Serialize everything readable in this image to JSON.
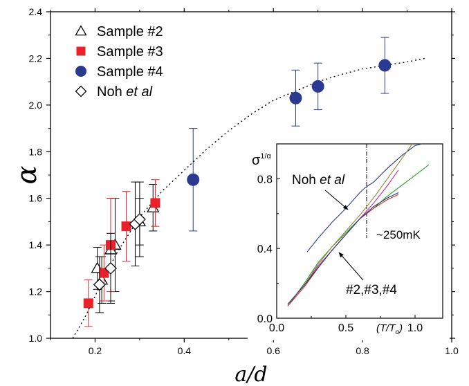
{
  "chart_data": [
    {
      "type": "scatter",
      "xlabel": "a/d",
      "ylabel": "α",
      "xlim": [
        0.1,
        1.0
      ],
      "ylim": [
        1.0,
        2.4
      ],
      "xticks": [
        "0.2",
        "0.4",
        "0.6",
        "0.8",
        "1.0"
      ],
      "yticks": [
        "1.0",
        "1.2",
        "1.4",
        "1.6",
        "1.8",
        "2.0",
        "2.2",
        "2.4"
      ],
      "legend_position": "top-left",
      "legend": [
        {
          "label": "Sample #2",
          "marker": "triangle-open"
        },
        {
          "label": "Sample #3",
          "marker": "square-filled"
        },
        {
          "label": "Sample #4",
          "marker": "circle-filled"
        },
        {
          "label_main": "Noh ",
          "label_italic": "et al",
          "marker": "diamond-open"
        }
      ],
      "series": [
        {
          "name": "Sample #2",
          "marker": "triangle-open",
          "color": "#000000",
          "points": [
            {
              "x": 0.205,
              "y": 1.3,
              "err": 0.09
            },
            {
              "x": 0.215,
              "y": 1.25,
              "err": 0.1
            },
            {
              "x": 0.235,
              "y": 1.38,
              "err": 0.22
            },
            {
              "x": 0.245,
              "y": 1.4,
              "err": 0.2
            },
            {
              "x": 0.3,
              "y": 1.5,
              "err": 0.1
            },
            {
              "x": 0.33,
              "y": 1.56,
              "err": 0.1
            }
          ]
        },
        {
          "name": "Sample #3",
          "marker": "square-filled",
          "color": "#e8212b",
          "points": [
            {
              "x": 0.185,
              "y": 1.15,
              "err": 0.1
            },
            {
              "x": 0.22,
              "y": 1.28,
              "err": 0.12
            },
            {
              "x": 0.235,
              "y": 1.4,
              "err": 0.2
            },
            {
              "x": 0.27,
              "y": 1.48,
              "err": 0.15
            },
            {
              "x": 0.335,
              "y": 1.58,
              "err": 0.1
            }
          ]
        },
        {
          "name": "Sample #4",
          "marker": "circle-filled",
          "color": "#2b3990",
          "points": [
            {
              "x": 0.42,
              "y": 1.68,
              "err": 0.22
            },
            {
              "x": 0.65,
              "y": 2.03,
              "err": 0.12
            },
            {
              "x": 0.7,
              "y": 2.08,
              "err": 0.1
            },
            {
              "x": 0.85,
              "y": 2.17,
              "err": 0.12
            }
          ]
        },
        {
          "name": "Noh et al",
          "marker": "diamond-open",
          "color": "#000000",
          "points": [
            {
              "x": 0.21,
              "y": 1.23,
              "err": 0.12
            },
            {
              "x": 0.235,
              "y": 1.3,
              "err": 0.15
            },
            {
              "x": 0.29,
              "y": 1.49,
              "err": 0.18
            },
            {
              "x": 0.3,
              "y": 1.51,
              "err": 0.16
            }
          ]
        }
      ],
      "fit_curve": {
        "style": "dotted",
        "color": "#000000",
        "x": [
          0.15,
          0.18,
          0.2,
          0.22,
          0.25,
          0.28,
          0.3,
          0.35,
          0.4,
          0.45,
          0.5,
          0.55,
          0.6,
          0.65,
          0.7,
          0.75,
          0.8,
          0.85,
          0.9,
          0.94
        ],
        "y": [
          1.0,
          1.1,
          1.18,
          1.26,
          1.37,
          1.46,
          1.52,
          1.63,
          1.72,
          1.81,
          1.89,
          1.96,
          2.02,
          2.06,
          2.1,
          2.13,
          2.155,
          2.17,
          2.185,
          2.2
        ]
      }
    },
    {
      "type": "line",
      "inset": true,
      "ylabel_main": "σ",
      "ylabel_sup": "1/α",
      "xlabel_italic": "(T/T",
      "xlabel_sub": "o",
      "xlabel_close": ")",
      "xlim": [
        0.0,
        1.2
      ],
      "ylim": [
        0.0,
        1.0
      ],
      "xticks": [
        "0.0",
        "0.5",
        "1.0"
      ],
      "yticks": [
        "0.0",
        "0.4",
        "0.8"
      ],
      "annotations": {
        "noh_main": "Noh ",
        "noh_italic": "et al",
        "temperature": "~250mK",
        "samples": "#2,#3,#4"
      },
      "vertical_line": {
        "x": 0.65,
        "style": "dash-dot"
      },
      "series": [
        {
          "name": "Noh et al",
          "color": "#2b3990",
          "x": [
            0.22,
            0.3,
            0.4,
            0.5,
            0.6,
            0.64,
            0.7,
            0.8,
            0.9,
            1.0,
            1.05
          ],
          "y": [
            0.38,
            0.46,
            0.55,
            0.63,
            0.72,
            0.75,
            0.78,
            0.86,
            0.93,
            0.99,
            1.0
          ]
        },
        {
          "name": "green",
          "color": "#2ca02c",
          "x": [
            0.08,
            0.2,
            0.3,
            0.4,
            0.5,
            0.6,
            0.7,
            0.8,
            0.9,
            1.0,
            1.1
          ],
          "y": [
            0.07,
            0.2,
            0.32,
            0.41,
            0.49,
            0.57,
            0.63,
            0.7,
            0.76,
            0.82,
            0.88
          ]
        },
        {
          "name": "magenta",
          "color": "#d6249f",
          "x": [
            0.08,
            0.2,
            0.3,
            0.4,
            0.5,
            0.6,
            0.7,
            0.8,
            0.88
          ],
          "y": [
            0.08,
            0.19,
            0.3,
            0.39,
            0.48,
            0.57,
            0.66,
            0.76,
            0.85
          ]
        },
        {
          "name": "olive",
          "color": "#8c8c2e",
          "x": [
            0.08,
            0.2,
            0.3,
            0.4,
            0.5,
            0.6,
            0.7,
            0.8,
            0.9,
            0.98
          ],
          "y": [
            0.08,
            0.19,
            0.31,
            0.41,
            0.5,
            0.59,
            0.69,
            0.8,
            0.91,
            1.0
          ]
        },
        {
          "name": "red",
          "color": "#d62728",
          "x": [
            0.08,
            0.2,
            0.3,
            0.4,
            0.5,
            0.6,
            0.7,
            0.8,
            0.88
          ],
          "y": [
            0.07,
            0.18,
            0.29,
            0.39,
            0.48,
            0.57,
            0.63,
            0.68,
            0.71
          ]
        },
        {
          "name": "navy",
          "color": "#1f3c88",
          "x": [
            0.08,
            0.2,
            0.3,
            0.4,
            0.5,
            0.6,
            0.7,
            0.8,
            0.88
          ],
          "y": [
            0.08,
            0.19,
            0.29,
            0.39,
            0.48,
            0.57,
            0.64,
            0.69,
            0.72
          ]
        }
      ]
    }
  ]
}
